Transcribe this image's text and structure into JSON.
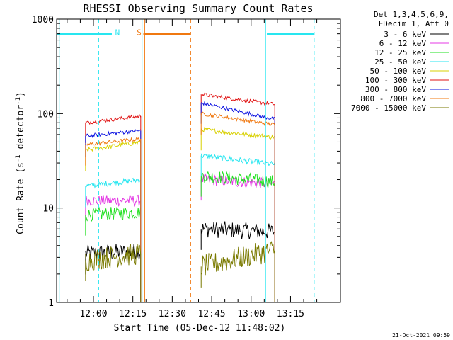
{
  "chart_data": {
    "type": "line",
    "title": "RHESSI Observing Summary Count Rates",
    "xlabel": "Start Time (05-Dec-12 11:48:02)",
    "ylabel_parts": [
      "Count Rate (s",
      "-1",
      " detector",
      "-1",
      ")"
    ],
    "y_scale": "log",
    "ylim": [
      1,
      1000
    ],
    "xlim_minutes": [
      -14,
      94
    ],
    "x_ticks": [
      {
        "label": "12:00",
        "min": 0
      },
      {
        "label": "12:15",
        "min": 15
      },
      {
        "label": "12:30",
        "min": 30
      },
      {
        "label": "12:45",
        "min": 45
      },
      {
        "label": "13:00",
        "min": 60
      },
      {
        "label": "13:15",
        "min": 75
      }
    ],
    "y_ticks": [
      {
        "label": "1",
        "v": 1
      },
      {
        "label": "10",
        "v": 10
      },
      {
        "label": "100",
        "v": 100
      },
      {
        "label": "1000",
        "v": 1000
      }
    ],
    "legend": {
      "position": "top-right",
      "header": [
        "Det 1,3,4,5,6,9,",
        "FDecim 1, Att 0"
      ],
      "entries": [
        {
          "label": "3 - 6 keV",
          "color": "#000000"
        },
        {
          "label": "6 - 12 keV",
          "color": "#e43ae4"
        },
        {
          "label": "12 - 25 keV",
          "color": "#22e022"
        },
        {
          "label": "25 - 50 keV",
          "color": "#28e6f0"
        },
        {
          "label": "50 - 100 keV",
          "color": "#d8d000"
        },
        {
          "label": "100 - 300 keV",
          "color": "#e01010"
        },
        {
          "label": "300 - 800 keV",
          "color": "#0a10e0"
        },
        {
          "label": "800 - 7000 keV",
          "color": "#f07810"
        },
        {
          "label": "7000 - 15000 keV",
          "color": "#7a7a00"
        }
      ]
    },
    "flags": [
      {
        "label": "N",
        "color": "#28e6f0",
        "level": 700,
        "segments": [
          [
            -14,
            7
          ],
          [
            66,
            84
          ]
        ]
      },
      {
        "label": "S",
        "color": "#f07810",
        "level": 700,
        "segments": [
          [
            19,
            37
          ]
        ]
      }
    ],
    "vlines": [
      {
        "min": -13,
        "color": "#28e6f0",
        "style": "solid"
      },
      {
        "min": 2,
        "color": "#28e6f0",
        "style": "dashed"
      },
      {
        "min": 18.5,
        "color": "#28e6f0",
        "style": "solid"
      },
      {
        "min": 19.5,
        "color": "#f07810",
        "style": "solid"
      },
      {
        "min": 37,
        "color": "#f07810",
        "style": "dashed"
      },
      {
        "min": 65.5,
        "color": "#28e6f0",
        "style": "solid"
      },
      {
        "min": 84,
        "color": "#28e6f0",
        "style": "dashed"
      }
    ],
    "series": [
      {
        "name": "3 - 6 keV",
        "color": "#000000",
        "noise": 0.09,
        "segments": [
          {
            "x0": -3,
            "x1": 18,
            "v0": 3.3,
            "v1": 3.5
          },
          {
            "x0": 41,
            "x1": 69,
            "v0": 6.0,
            "v1": 5.6
          }
        ]
      },
      {
        "name": "6 - 12 keV",
        "color": "#e43ae4",
        "noise": 0.06,
        "segments": [
          {
            "x0": -3,
            "x1": 18,
            "v0": 12,
            "v1": 12
          },
          {
            "x0": 41,
            "x1": 69,
            "v0": 20,
            "v1": 18
          }
        ]
      },
      {
        "name": "12 - 25 keV",
        "color": "#22e022",
        "noise": 0.07,
        "segments": [
          {
            "x0": -3,
            "x1": 18,
            "v0": 8.5,
            "v1": 9
          },
          {
            "x0": 41,
            "x1": 69,
            "v0": 22,
            "v1": 19
          }
        ]
      },
      {
        "name": "25 - 50 keV",
        "color": "#28e6f0",
        "noise": 0.03,
        "segments": [
          {
            "x0": -3,
            "x1": 18,
            "v0": 17,
            "v1": 20
          },
          {
            "x0": 41,
            "x1": 69,
            "v0": 36,
            "v1": 29
          }
        ]
      },
      {
        "name": "50 - 100 keV",
        "color": "#d8d000",
        "noise": 0.025,
        "segments": [
          {
            "x0": -3,
            "x1": 18,
            "v0": 41,
            "v1": 50
          },
          {
            "x0": 41,
            "x1": 69,
            "v0": 68,
            "v1": 56
          }
        ]
      },
      {
        "name": "100 - 300 keV",
        "color": "#e01010",
        "noise": 0.02,
        "segments": [
          {
            "x0": -3,
            "x1": 18,
            "v0": 80,
            "v1": 94
          },
          {
            "x0": 41,
            "x1": 69,
            "v0": 160,
            "v1": 125
          }
        ]
      },
      {
        "name": "300 - 800 keV",
        "color": "#0a10e0",
        "noise": 0.02,
        "segments": [
          {
            "x0": -3,
            "x1": 18,
            "v0": 58,
            "v1": 66
          },
          {
            "x0": 41,
            "x1": 69,
            "v0": 130,
            "v1": 87
          }
        ]
      },
      {
        "name": "800 - 7000 keV",
        "color": "#f07810",
        "noise": 0.02,
        "segments": [
          {
            "x0": -3,
            "x1": 18,
            "v0": 47,
            "v1": 54
          },
          {
            "x0": 41,
            "x1": 69,
            "v0": 100,
            "v1": 76
          }
        ]
      },
      {
        "name": "7000 - 15000 keV",
        "color": "#7a7a00",
        "noise": 0.12,
        "segments": [
          {
            "x0": -3,
            "x1": 18,
            "v0": 2.8,
            "v1": 3.3
          },
          {
            "x0": 41,
            "x1": 69,
            "v0": 2.4,
            "v1": 3.6
          }
        ]
      }
    ],
    "timestamp": "21-Oct-2021 09:59"
  }
}
